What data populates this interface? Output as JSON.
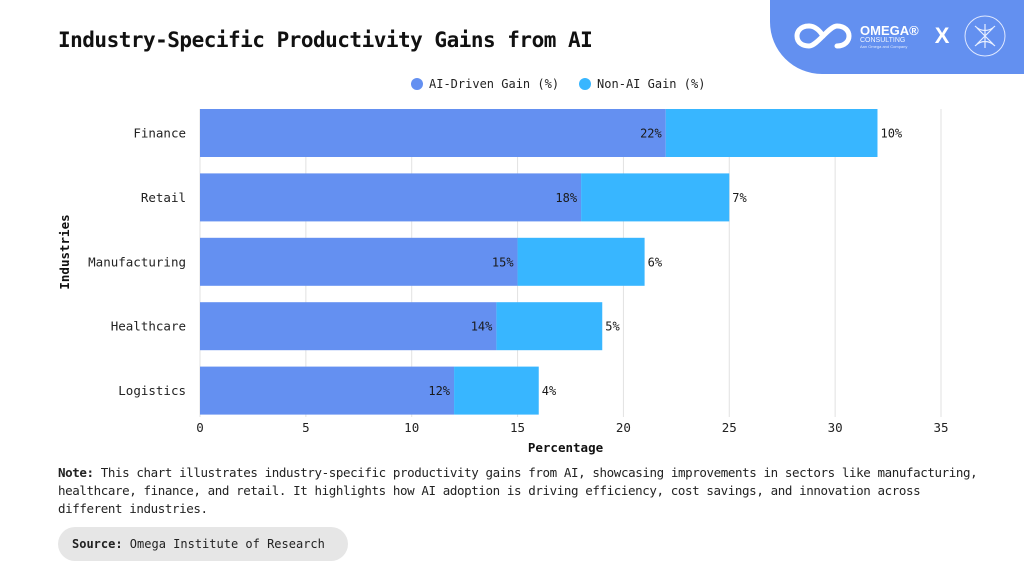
{
  "header": {
    "title": "Industry-Specific Productivity Gains from AI"
  },
  "brand": {
    "name": "OMEGA®",
    "subtitle": "CONSULTING",
    "tagline": "Aan Omega and Company",
    "separator": "X",
    "logo_icon": "infinity-icon",
    "partner_icon": "globe-mesh-icon",
    "background_color": "#6390f0"
  },
  "legend": [
    {
      "label": "AI-Driven Gain (%)",
      "color": "#6490f1"
    },
    {
      "label": "Non-AI Gain (%)",
      "color": "#38b6ff"
    }
  ],
  "chart_data": {
    "type": "bar",
    "orientation": "horizontal",
    "stacked": true,
    "title": "Industry-Specific Productivity Gains from AI",
    "xlabel": "Percentage",
    "ylabel": "Industries",
    "categories": [
      "Finance",
      "Retail",
      "Manufacturing",
      "Healthcare",
      "Logistics"
    ],
    "series": [
      {
        "name": "AI-Driven Gain (%)",
        "values": [
          22,
          18,
          15,
          14,
          12
        ],
        "color": "#6490f1",
        "labels": [
          "22%",
          "18%",
          "15%",
          "14%",
          "12%"
        ]
      },
      {
        "name": "Non-AI Gain (%)",
        "values": [
          10,
          7,
          6,
          5,
          4
        ],
        "color": "#38b6ff",
        "labels": [
          "10%",
          "7%",
          "6%",
          "5%",
          "4%"
        ]
      }
    ],
    "xlim": [
      0,
      35
    ],
    "xticks": [
      0,
      5,
      10,
      15,
      20,
      25,
      30,
      35
    ],
    "xtick_labels": [
      "0",
      "5",
      "10",
      "15",
      "20",
      "25",
      "30",
      "35"
    ],
    "grid": "vertical",
    "legend_position": "top-center"
  },
  "footer": {
    "note_label": "Note:",
    "note_text": " This chart illustrates industry-specific productivity gains from AI, showcasing improvements in sectors like manufacturing, healthcare, finance, and retail. It highlights how AI adoption is driving efficiency, cost savings, and innovation across different industries.",
    "source_label": "Source:",
    "source_text": " Omega Institute of Research"
  }
}
